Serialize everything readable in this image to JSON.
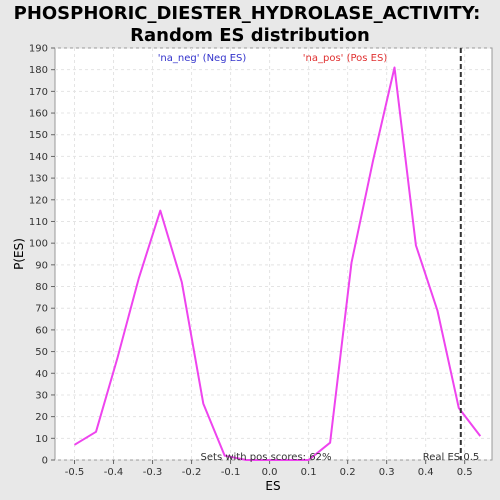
{
  "chart_data": {
    "type": "line",
    "title_line1": "PHOSPHORIC_DIESTER_HYDROLASE_ACTIVITY:",
    "title_line2": "Random ES distribution",
    "xlabel": "ES",
    "ylabel": "P(ES)",
    "xlim": [
      -0.55,
      0.57
    ],
    "ylim": [
      0,
      190
    ],
    "xticks": [
      -0.5,
      -0.4,
      -0.3,
      -0.2,
      -0.1,
      0.0,
      0.1,
      0.2,
      0.3,
      0.4,
      0.5
    ],
    "xtick_labels": [
      "-0.5",
      "-0.4",
      "-0.3",
      "-0.2",
      "-0.1",
      "0.0",
      "0.1",
      "0.2",
      "0.3",
      "0.4",
      "0.5"
    ],
    "yticks": [
      0,
      10,
      20,
      30,
      40,
      50,
      60,
      70,
      80,
      90,
      100,
      110,
      120,
      130,
      140,
      150,
      160,
      170,
      180,
      190
    ],
    "grid": true,
    "legend": [
      {
        "name": "'na_neg' (Neg ES)",
        "color": "#3333cc"
      },
      {
        "name": "'na_pos' (Pos ES)",
        "color": "#e03030"
      }
    ],
    "series": [
      {
        "color": "#ee44ee",
        "x": [
          -0.5,
          -0.445,
          -0.39,
          -0.335,
          -0.28,
          -0.225,
          -0.17,
          -0.115,
          -0.06,
          0.0,
          0.1,
          0.155,
          0.21,
          0.265,
          0.32,
          0.375,
          0.43,
          0.485,
          0.54
        ],
        "y": [
          7,
          13,
          47,
          84,
          115,
          82,
          26,
          2,
          0,
          0,
          0,
          8,
          91,
          138,
          181,
          99,
          69,
          24,
          11
        ]
      }
    ],
    "vline": {
      "x": 0.49,
      "label": "Real ES 0.5",
      "color": "#333333"
    },
    "annotation": "Sets with pos scores: 62%"
  }
}
